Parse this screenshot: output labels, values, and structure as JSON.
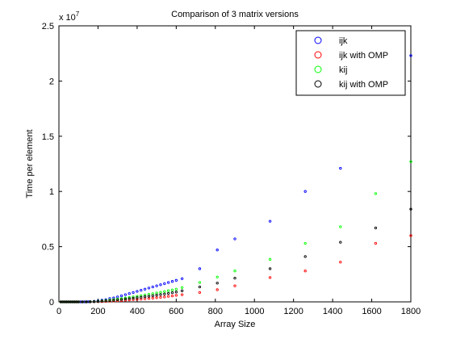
{
  "chart_data": {
    "type": "scatter",
    "title": "Comparison of 3 matrix versions",
    "xlabel": "Array Size",
    "ylabel": "Time per element",
    "xlim": [
      0,
      1800
    ],
    "ylim": [
      0,
      25000000
    ],
    "y_exponent_label": "x 10",
    "y_exponent": "7",
    "x_ticks": [
      0,
      200,
      400,
      600,
      800,
      1000,
      1200,
      1400,
      1600,
      1800
    ],
    "x_tick_labels": [
      "0",
      "200",
      "400",
      "600",
      "800",
      "1000",
      "1200",
      "1400",
      "1600",
      "1800"
    ],
    "y_ticks": [
      0,
      5000000,
      10000000,
      15000000,
      20000000,
      25000000
    ],
    "y_tick_labels": [
      "0",
      "0.5",
      "1",
      "1.5",
      "2",
      "2.5"
    ],
    "grid": false,
    "legend_position": "top-right",
    "series": [
      {
        "name": "ijk",
        "color": "#0000ff",
        "points": [
          [
            10,
            0
          ],
          [
            20,
            0
          ],
          [
            30,
            0
          ],
          [
            40,
            0
          ],
          [
            50,
            0
          ],
          [
            60,
            0
          ],
          [
            70,
            0
          ],
          [
            80,
            0
          ],
          [
            90,
            0
          ],
          [
            100,
            0
          ],
          [
            110,
            0
          ],
          [
            120,
            0
          ],
          [
            130,
            0
          ],
          [
            140,
            5000
          ],
          [
            150,
            10000
          ],
          [
            160,
            20000
          ],
          [
            180,
            50000
          ],
          [
            200,
            100000
          ],
          [
            220,
            150000
          ],
          [
            240,
            200000
          ],
          [
            260,
            300000
          ],
          [
            280,
            350000
          ],
          [
            300,
            450000
          ],
          [
            320,
            550000
          ],
          [
            340,
            650000
          ],
          [
            360,
            750000
          ],
          [
            380,
            850000
          ],
          [
            400,
            950000
          ],
          [
            420,
            1050000
          ],
          [
            440,
            1150000
          ],
          [
            460,
            1250000
          ],
          [
            480,
            1350000
          ],
          [
            500,
            1450000
          ],
          [
            520,
            1550000
          ],
          [
            540,
            1650000
          ],
          [
            560,
            1750000
          ],
          [
            580,
            1850000
          ],
          [
            600,
            1950000
          ],
          [
            630,
            2100000
          ],
          [
            720,
            3000000
          ],
          [
            810,
            4700000
          ],
          [
            900,
            5700000
          ],
          [
            1080,
            7300000
          ],
          [
            1260,
            10000000
          ],
          [
            1440,
            12100000
          ],
          [
            1800,
            22300000
          ]
        ]
      },
      {
        "name": "ijk with OMP",
        "color": "#ff0000",
        "points": [
          [
            10,
            0
          ],
          [
            20,
            0
          ],
          [
            30,
            0
          ],
          [
            40,
            0
          ],
          [
            50,
            0
          ],
          [
            60,
            0
          ],
          [
            70,
            0
          ],
          [
            80,
            0
          ],
          [
            90,
            0
          ],
          [
            100,
            0
          ],
          [
            120,
            0
          ],
          [
            140,
            0
          ],
          [
            160,
            0
          ],
          [
            180,
            10000
          ],
          [
            200,
            20000
          ],
          [
            220,
            30000
          ],
          [
            240,
            50000
          ],
          [
            260,
            60000
          ],
          [
            280,
            80000
          ],
          [
            300,
            100000
          ],
          [
            320,
            120000
          ],
          [
            340,
            150000
          ],
          [
            360,
            170000
          ],
          [
            380,
            200000
          ],
          [
            400,
            230000
          ],
          [
            420,
            250000
          ],
          [
            440,
            280000
          ],
          [
            460,
            310000
          ],
          [
            480,
            340000
          ],
          [
            500,
            380000
          ],
          [
            520,
            410000
          ],
          [
            540,
            450000
          ],
          [
            560,
            500000
          ],
          [
            580,
            540000
          ],
          [
            600,
            590000
          ],
          [
            630,
            650000
          ],
          [
            720,
            850000
          ],
          [
            810,
            1100000
          ],
          [
            900,
            1450000
          ],
          [
            1080,
            2200000
          ],
          [
            1260,
            2800000
          ],
          [
            1440,
            3600000
          ],
          [
            1620,
            5300000
          ],
          [
            1800,
            6000000
          ]
        ]
      },
      {
        "name": "kij",
        "color": "#00ff00",
        "points": [
          [
            10,
            0
          ],
          [
            20,
            0
          ],
          [
            30,
            0
          ],
          [
            40,
            0
          ],
          [
            50,
            0
          ],
          [
            60,
            0
          ],
          [
            70,
            0
          ],
          [
            80,
            0
          ],
          [
            90,
            0
          ],
          [
            100,
            0
          ],
          [
            120,
            0
          ],
          [
            140,
            0
          ],
          [
            160,
            10000
          ],
          [
            180,
            30000
          ],
          [
            200,
            60000
          ],
          [
            220,
            100000
          ],
          [
            240,
            130000
          ],
          [
            260,
            170000
          ],
          [
            280,
            210000
          ],
          [
            300,
            260000
          ],
          [
            320,
            300000
          ],
          [
            340,
            350000
          ],
          [
            360,
            400000
          ],
          [
            380,
            450000
          ],
          [
            400,
            500000
          ],
          [
            420,
            560000
          ],
          [
            440,
            620000
          ],
          [
            460,
            680000
          ],
          [
            480,
            740000
          ],
          [
            500,
            800000
          ],
          [
            520,
            870000
          ],
          [
            540,
            940000
          ],
          [
            560,
            1010000
          ],
          [
            580,
            1080000
          ],
          [
            600,
            1150000
          ],
          [
            630,
            1300000
          ],
          [
            720,
            1750000
          ],
          [
            810,
            2250000
          ],
          [
            900,
            2800000
          ],
          [
            1080,
            3850000
          ],
          [
            1260,
            5300000
          ],
          [
            1440,
            6800000
          ],
          [
            1620,
            9800000
          ],
          [
            1800,
            12700000
          ]
        ]
      },
      {
        "name": "kij with OMP",
        "color": "#000000",
        "points": [
          [
            10,
            0
          ],
          [
            20,
            0
          ],
          [
            30,
            0
          ],
          [
            40,
            0
          ],
          [
            50,
            0
          ],
          [
            60,
            0
          ],
          [
            70,
            0
          ],
          [
            80,
            0
          ],
          [
            90,
            0
          ],
          [
            100,
            0
          ],
          [
            120,
            0
          ],
          [
            140,
            0
          ],
          [
            160,
            5000
          ],
          [
            180,
            20000
          ],
          [
            200,
            40000
          ],
          [
            220,
            70000
          ],
          [
            240,
            90000
          ],
          [
            260,
            120000
          ],
          [
            280,
            150000
          ],
          [
            300,
            190000
          ],
          [
            320,
            220000
          ],
          [
            340,
            260000
          ],
          [
            360,
            300000
          ],
          [
            380,
            340000
          ],
          [
            400,
            380000
          ],
          [
            420,
            420000
          ],
          [
            440,
            470000
          ],
          [
            460,
            510000
          ],
          [
            480,
            560000
          ],
          [
            500,
            610000
          ],
          [
            520,
            660000
          ],
          [
            540,
            710000
          ],
          [
            560,
            770000
          ],
          [
            580,
            830000
          ],
          [
            600,
            890000
          ],
          [
            630,
            1000000
          ],
          [
            720,
            1350000
          ],
          [
            810,
            1700000
          ],
          [
            900,
            2150000
          ],
          [
            1080,
            3000000
          ],
          [
            1260,
            4100000
          ],
          [
            1440,
            5400000
          ],
          [
            1620,
            6700000
          ],
          [
            1800,
            8400000
          ]
        ]
      }
    ]
  }
}
